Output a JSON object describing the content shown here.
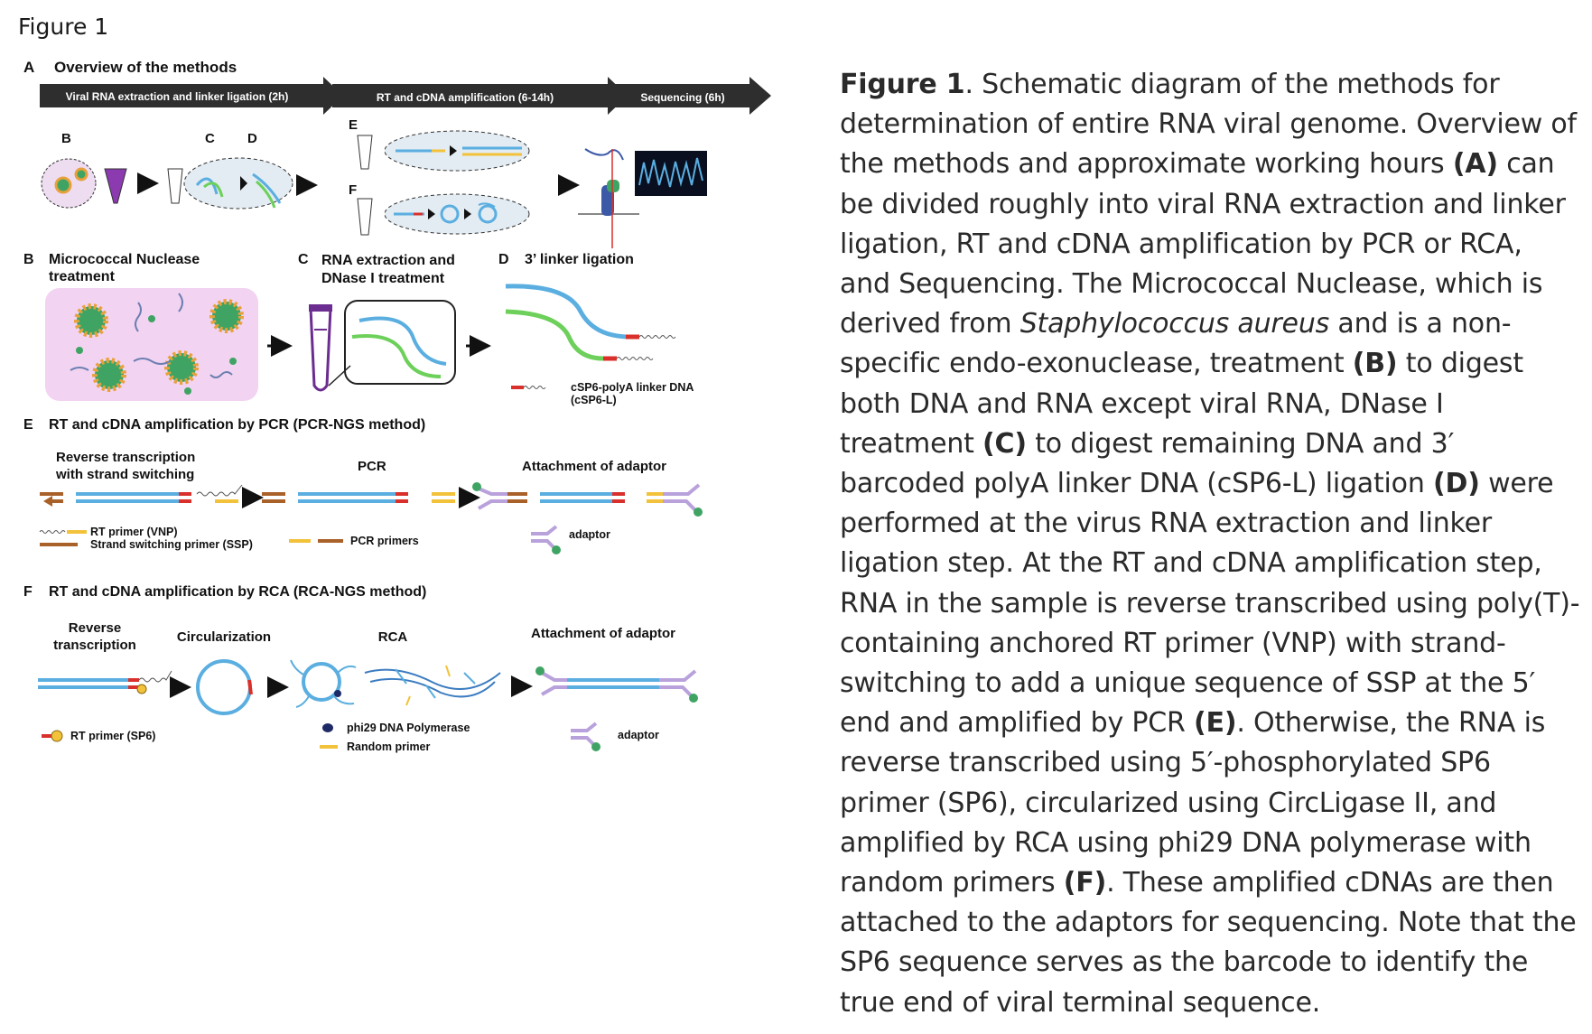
{
  "figure_label": "Figure 1",
  "panelA": {
    "letter": "A",
    "title": "Overview of the methods",
    "steps": [
      "Viral RNA extraction and linker ligation (2h)",
      "RT and cDNA amplification (6-14h)",
      "Sequencing (6h)"
    ],
    "sub_labels": [
      "B",
      "C",
      "D",
      "E",
      "F"
    ]
  },
  "panelB": {
    "letter": "B",
    "title_line1": "Micrococcal Nuclease",
    "title_line2": "treatment"
  },
  "panelC": {
    "letter": "C",
    "title_line1": "RNA extraction and",
    "title_line2": "DNase I treatment"
  },
  "panelD": {
    "letter": "D",
    "title": "3’ linker ligation",
    "legend_line1": "cSP6-polyA linker DNA",
    "legend_line2": "(cSP6-L)"
  },
  "panelE": {
    "letter": "E",
    "title": "RT and cDNA amplification by PCR (PCR-NGS method)",
    "step1_line1": "Reverse transcription",
    "step1_line2": "with strand switching",
    "step2": "PCR",
    "step3": "Attachment of adaptor",
    "legend_rt": "RT primer (VNP)",
    "legend_ssp": "Strand switching primer (SSP)",
    "legend_pcr": "PCR primers",
    "legend_adaptor": "adaptor"
  },
  "panelF": {
    "letter": "F",
    "title": "RT and cDNA amplification by RCA (RCA-NGS method)",
    "step1_line1": "Reverse",
    "step1_line2": "transcription",
    "step2": "Circularization",
    "step3": "RCA",
    "step4": "Attachment of adaptor",
    "legend_rt": "RT primer (SP6)",
    "legend_phi": "phi29 DNA Polymerase",
    "legend_random": "Random primer",
    "legend_adaptor": "adaptor"
  },
  "caption": {
    "fig": "Figure 1",
    "p1": ". Schematic diagram of the methods for determination of entire RNA viral genome. Overview of the methods and approximate working hours ",
    "refA": "(A)",
    "p2": " can be divided roughly into viral RNA extraction and linker ligation, RT and cDNA amplification by PCR or RCA, and Sequencing. The Micrococcal Nuclease, which is derived from ",
    "species": "Staphylococcus aureus",
    "p3": " and is a non-specific endo-exonuclease, treatment ",
    "refB": "(B)",
    "p4": " to digest both DNA and RNA except viral RNA, DNase I treatment ",
    "refC": "(C)",
    "p5": " to digest remaining DNA and 3′ barcoded polyA linker DNA (cSP6-L) ligation ",
    "refD": "(D)",
    "p6": " were performed at the virus RNA extraction and linker ligation step. At the RT and cDNA amplification step, RNA in the sample is reverse transcribed using poly(T)-containing anchored RT primer (VNP) with strand-switching to add a unique sequence of SSP at the 5′ end and amplified by PCR ",
    "refE": "(E)",
    "p7": ". Otherwise, the RNA is reverse transcribed using 5′-phosphorylated SP6 primer (SP6), circularized using CircLigase II, and amplified by RCA using phi29 DNA polymerase with random primers ",
    "refF": "(F)",
    "p8": ". These amplified cDNAs are then attached to the adaptors for sequencing. Note that the SP6 sequence serves as the barcode to identify the true end of viral terminal sequence."
  },
  "colors": {
    "rna_blue": "#5aaee0",
    "rna_green": "#6cd05a",
    "linker_red": "#d9302b",
    "primer_yellow": "#f2c23a",
    "ssp_brown": "#a9612a",
    "adaptor_purple": "#b9a2dc",
    "adaptor_green": "#3fa463",
    "arrow_dark": "#2e2e2e",
    "bubble_fill": "#e3ecf3",
    "pink_bg": "#f2d3f2",
    "tube_purple": "#6b2d8f"
  }
}
